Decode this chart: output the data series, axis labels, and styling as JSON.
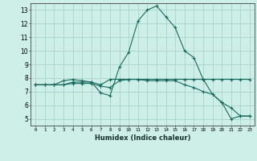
{
  "xlabel": "Humidex (Indice chaleur)",
  "ylabel": "",
  "bg_color": "#ceeee8",
  "grid_color": "#aad8d0",
  "line_color": "#1a6b60",
  "xlim": [
    -0.5,
    23.5
  ],
  "ylim": [
    4.5,
    13.5
  ],
  "xticks": [
    0,
    1,
    2,
    3,
    4,
    5,
    6,
    7,
    8,
    9,
    10,
    11,
    12,
    13,
    14,
    15,
    16,
    17,
    18,
    19,
    20,
    21,
    22,
    23
  ],
  "yticks": [
    5,
    6,
    7,
    8,
    9,
    10,
    11,
    12,
    13
  ],
  "series": [
    {
      "x": [
        0,
        1,
        2,
        3,
        4,
        5,
        6,
        7,
        8,
        9,
        10,
        11,
        12,
        13,
        14,
        15,
        16,
        17,
        18,
        19,
        20,
        21,
        22,
        23
      ],
      "y": [
        7.5,
        7.5,
        7.5,
        7.5,
        7.7,
        7.7,
        7.7,
        6.9,
        6.7,
        8.8,
        9.9,
        12.2,
        13.0,
        13.3,
        12.5,
        11.7,
        10.0,
        9.5,
        7.9,
        6.8,
        6.2,
        5.0,
        5.2,
        5.2
      ]
    },
    {
      "x": [
        0,
        1,
        2,
        3,
        4,
        5,
        6,
        7,
        8,
        9,
        10,
        11,
        12,
        13,
        14,
        15,
        16,
        17,
        18,
        19,
        20,
        21,
        22,
        23
      ],
      "y": [
        7.5,
        7.5,
        7.5,
        7.8,
        7.9,
        7.8,
        7.7,
        7.5,
        7.9,
        7.9,
        7.9,
        7.9,
        7.9,
        7.9,
        7.9,
        7.9,
        7.9,
        7.9,
        7.9,
        7.9,
        7.9,
        7.9,
        7.9,
        7.9
      ]
    },
    {
      "x": [
        0,
        1,
        2,
        3,
        4,
        5,
        6,
        7,
        8,
        9,
        10,
        11,
        12,
        13,
        14,
        15,
        16,
        17,
        18,
        19,
        20,
        21,
        22,
        23
      ],
      "y": [
        7.5,
        7.5,
        7.5,
        7.5,
        7.6,
        7.6,
        7.6,
        7.4,
        7.3,
        7.8,
        7.9,
        7.9,
        7.8,
        7.8,
        7.8,
        7.8,
        7.5,
        7.3,
        7.0,
        6.8,
        6.2,
        5.8,
        5.2,
        5.2
      ]
    }
  ]
}
